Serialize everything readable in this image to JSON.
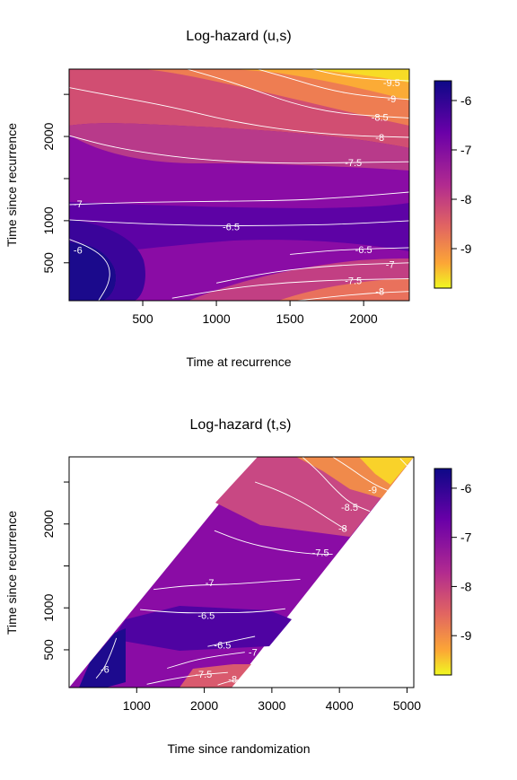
{
  "chart_data": [
    {
      "type": "heatmap",
      "title": "Log-hazard (u,s)",
      "xlabel": "Time at recurrence",
      "ylabel": "Time since recurrence",
      "xlim": [
        0,
        2310
      ],
      "ylim": [
        50,
        2800
      ],
      "x_ticks": [
        500,
        1000,
        1500,
        2000
      ],
      "x_tick_labels": [
        "500",
        "1000",
        "1500",
        "2000"
      ],
      "y_ticks": [
        500,
        1000,
        1500,
        2000,
        2500
      ],
      "y_tick_labels": [
        "500",
        "1000",
        "",
        "2000",
        ""
      ],
      "colorbar": {
        "min": -9.8,
        "max": -5.6,
        "ticks": [
          -6,
          -7,
          -8,
          -9
        ],
        "tick_labels": [
          "-6",
          "-7",
          "-8",
          "-9"
        ],
        "palette": "plasma-reversed"
      },
      "contour_labels": [
        {
          "text": "-9.5",
          "x": 2190,
          "y": 2640
        },
        {
          "text": "-9",
          "x": 2190,
          "y": 2450
        },
        {
          "text": "-8.5",
          "x": 2110,
          "y": 2230
        },
        {
          "text": "-8",
          "x": 2110,
          "y": 1990
        },
        {
          "text": "-7.5",
          "x": 1930,
          "y": 1690
        },
        {
          "text": "-7",
          "x": 60,
          "y": 1200
        },
        {
          "text": "-6.5",
          "x": 1100,
          "y": 930
        },
        {
          "text": "-6.5",
          "x": 2000,
          "y": 660
        },
        {
          "text": "-6",
          "x": 60,
          "y": 650
        },
        {
          "text": "-7",
          "x": 2180,
          "y": 480
        },
        {
          "text": "-7.5",
          "x": 1930,
          "y": 290
        },
        {
          "text": "-8",
          "x": 2110,
          "y": 160
        }
      ],
      "contours": [
        {
          "level": "-9.5",
          "points": [
            [
              1650,
              2800
            ],
            [
              1850,
              2720
            ],
            [
              2050,
              2680
            ],
            [
              2310,
              2660
            ]
          ]
        },
        {
          "level": "-9",
          "points": [
            [
              1280,
              2800
            ],
            [
              1500,
              2690
            ],
            [
              1750,
              2560
            ],
            [
              2000,
              2480
            ],
            [
              2310,
              2440
            ]
          ]
        },
        {
          "level": "-8.5",
          "points": [
            [
              800,
              2800
            ],
            [
              1000,
              2700
            ],
            [
              1250,
              2560
            ],
            [
              1500,
              2400
            ],
            [
              1800,
              2280
            ],
            [
              2100,
              2240
            ],
            [
              2310,
              2220
            ]
          ]
        },
        {
          "level": "-8",
          "points": [
            [
              0,
              2580
            ],
            [
              300,
              2480
            ],
            [
              700,
              2350
            ],
            [
              1100,
              2180
            ],
            [
              1500,
              2070
            ],
            [
              1900,
              2010
            ],
            [
              2310,
              1990
            ]
          ]
        },
        {
          "level": "-7.5",
          "points": [
            [
              0,
              2010
            ],
            [
              300,
              1870
            ],
            [
              700,
              1760
            ],
            [
              1100,
              1700
            ],
            [
              1500,
              1680
            ],
            [
              1900,
              1690
            ],
            [
              2310,
              1700
            ]
          ]
        },
        {
          "level": "-7",
          "points": [
            [
              0,
              1190
            ],
            [
              500,
              1220
            ],
            [
              1000,
              1230
            ],
            [
              1500,
              1240
            ],
            [
              1900,
              1280
            ],
            [
              2310,
              1340
            ]
          ]
        },
        {
          "level": "-6.5",
          "points": [
            [
              0,
              1010
            ],
            [
              400,
              970
            ],
            [
              900,
              940
            ],
            [
              1400,
              940
            ],
            [
              1900,
              960
            ],
            [
              2310,
              1000
            ]
          ]
        },
        {
          "level": "-6.5",
          "points": [
            [
              1500,
              600
            ],
            [
              1800,
              650
            ],
            [
              2100,
              670
            ],
            [
              2310,
              680
            ]
          ]
        },
        {
          "level": "-6",
          "points": [
            [
              0,
              780
            ],
            [
              120,
              700
            ],
            [
              230,
              580
            ],
            [
              280,
              430
            ],
            [
              270,
              250
            ],
            [
              200,
              50
            ]
          ]
        },
        {
          "level": "-7",
          "points": [
            [
              1000,
              260
            ],
            [
              1400,
              400
            ],
            [
              1800,
              470
            ],
            [
              2310,
              500
            ]
          ]
        },
        {
          "level": "-7.5",
          "points": [
            [
              700,
              80
            ],
            [
              1100,
              200
            ],
            [
              1500,
              270
            ],
            [
              1900,
              300
            ],
            [
              2310,
              310
            ]
          ]
        },
        {
          "level": "-8",
          "points": [
            [
              1550,
              50
            ],
            [
              1800,
              100
            ],
            [
              2050,
              140
            ],
            [
              2310,
              160
            ]
          ]
        }
      ]
    },
    {
      "type": "heatmap",
      "title": "Log-hazard (t,s)",
      "xlabel": "Time since randomization",
      "ylabel": "Time since recurrence",
      "xlim": [
        0,
        5100
      ],
      "ylim": [
        50,
        2800
      ],
      "x_ticks": [
        1000,
        2000,
        3000,
        4000,
        5000
      ],
      "x_tick_labels": [
        "1000",
        "2000",
        "3000",
        "4000",
        "5000"
      ],
      "y_ticks": [
        500,
        1000,
        1500,
        2000,
        2500
      ],
      "y_tick_labels": [
        "500",
        "1000",
        "",
        "2000",
        ""
      ],
      "colorbar": {
        "min": -9.8,
        "max": -5.6,
        "ticks": [
          -6,
          -7,
          -8,
          -9
        ],
        "tick_labels": [
          "-6",
          "-7",
          "-8",
          "-9"
        ],
        "palette": "plasma-reversed"
      },
      "contour_labels": [
        {
          "text": "-9",
          "x": 4490,
          "y": 2410
        },
        {
          "text": "-8.5",
          "x": 4150,
          "y": 2200
        },
        {
          "text": "-8",
          "x": 4050,
          "y": 1950
        },
        {
          "text": "-7.5",
          "x": 3720,
          "y": 1660
        },
        {
          "text": "-7",
          "x": 2080,
          "y": 1300
        },
        {
          "text": "-6.5",
          "x": 2030,
          "y": 910
        },
        {
          "text": "-6.5",
          "x": 2270,
          "y": 560
        },
        {
          "text": "-7",
          "x": 2720,
          "y": 470
        },
        {
          "text": "-6",
          "x": 530,
          "y": 270
        },
        {
          "text": "-7.5",
          "x": 1990,
          "y": 210
        },
        {
          "text": "-8",
          "x": 2420,
          "y": 150
        }
      ],
      "contours": [
        {
          "level": "-9.5",
          "points": [
            [
              4900,
              2780
            ],
            [
              5050,
              2650
            ]
          ]
        },
        {
          "level": "-9",
          "points": [
            [
              3900,
              2800
            ],
            [
              4150,
              2670
            ],
            [
              4450,
              2500
            ],
            [
              4700,
              2400
            ],
            [
              4900,
              2350
            ]
          ]
        },
        {
          "level": "-8.5",
          "points": [
            [
              3450,
              2800
            ],
            [
              3700,
              2620
            ],
            [
              3900,
              2440
            ],
            [
              4150,
              2250
            ],
            [
              4450,
              2150
            ]
          ]
        },
        {
          "level": "-8",
          "points": [
            [
              2750,
              2500
            ],
            [
              3100,
              2400
            ],
            [
              3500,
              2240
            ],
            [
              3800,
              2080
            ],
            [
              4100,
              1930
            ]
          ]
        },
        {
          "level": "-7.5",
          "points": [
            [
              2150,
              1920
            ],
            [
              2600,
              1780
            ],
            [
              3100,
              1690
            ],
            [
              3600,
              1640
            ],
            [
              3900,
              1640
            ]
          ]
        },
        {
          "level": "-7",
          "points": [
            [
              1250,
              1220
            ],
            [
              1800,
              1270
            ],
            [
              2400,
              1280
            ],
            [
              3050,
              1320
            ],
            [
              3420,
              1340
            ]
          ]
        },
        {
          "level": "-6.5",
          "points": [
            [
              1050,
              980
            ],
            [
              1600,
              940
            ],
            [
              2200,
              940
            ],
            [
              2800,
              950
            ],
            [
              3200,
              990
            ]
          ]
        },
        {
          "level": "-6.5",
          "points": [
            [
              2050,
              540
            ],
            [
              2450,
              610
            ],
            [
              2750,
              660
            ]
          ]
        },
        {
          "level": "-6",
          "points": [
            [
              700,
              640
            ],
            [
              620,
              460
            ],
            [
              520,
              280
            ],
            [
              400,
              160
            ]
          ]
        },
        {
          "level": "-7",
          "points": [
            [
              1450,
              280
            ],
            [
              1900,
              390
            ],
            [
              2400,
              450
            ],
            [
              2600,
              470
            ]
          ]
        },
        {
          "level": "-7.5",
          "points": [
            [
              1150,
              90
            ],
            [
              1500,
              150
            ],
            [
              1900,
              200
            ],
            [
              2350,
              230
            ]
          ]
        },
        {
          "level": "-8",
          "points": [
            [
              2200,
              80
            ],
            [
              2350,
              120
            ],
            [
              2500,
              140
            ]
          ]
        }
      ]
    }
  ]
}
